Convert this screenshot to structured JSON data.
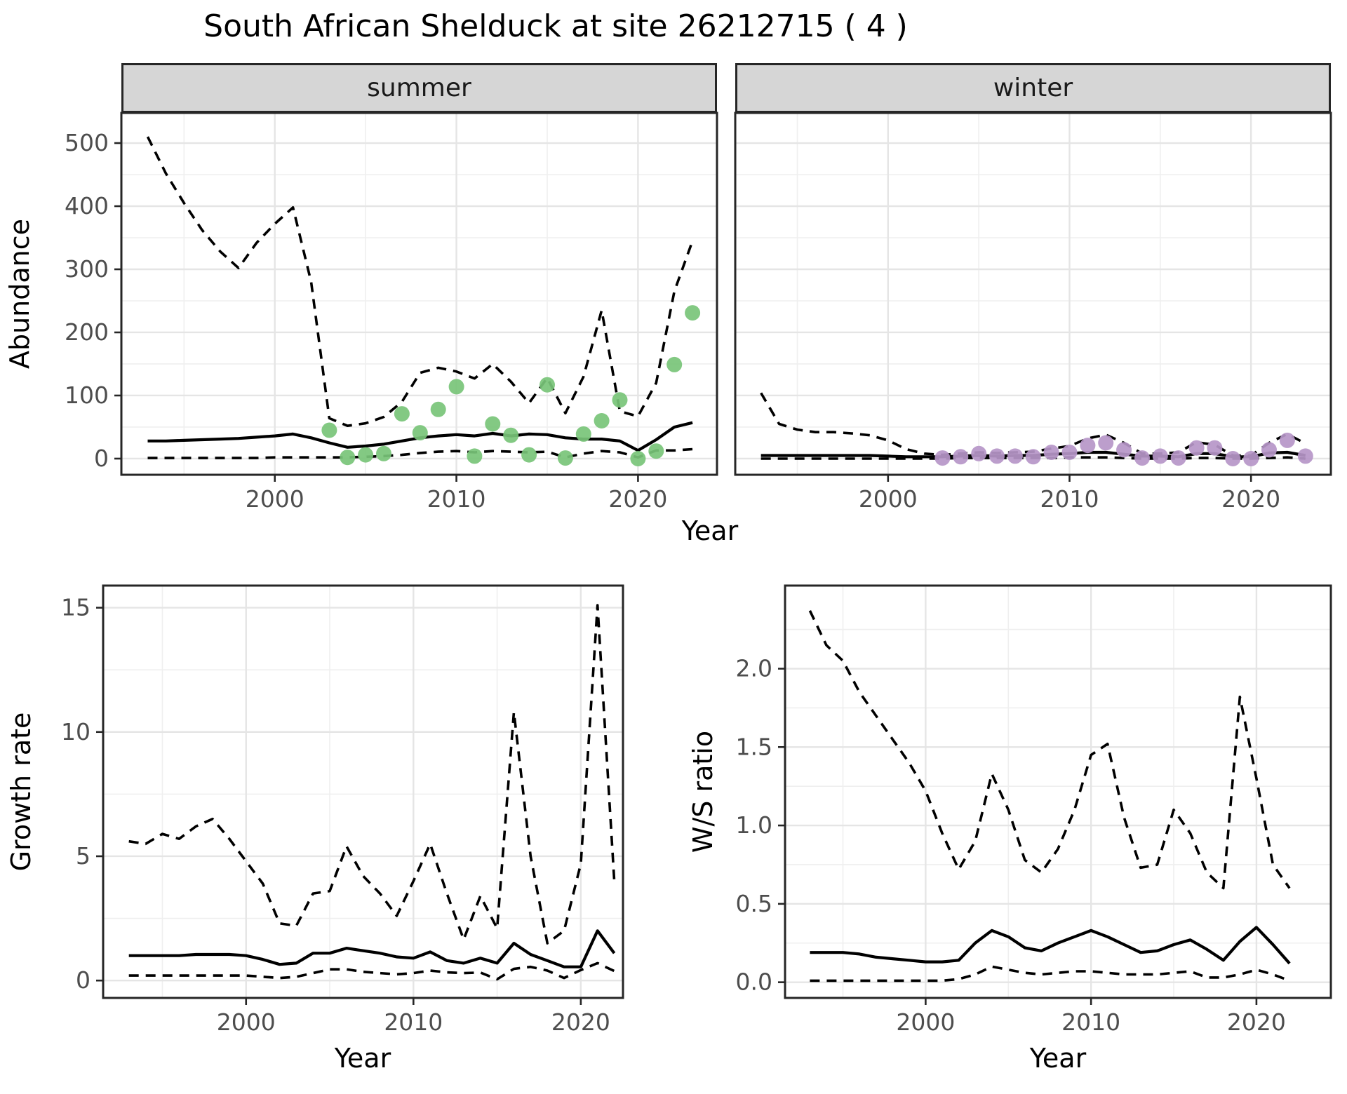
{
  "title": "South African Shelduck at site 26212715 ( 4 )",
  "axis_titles": {
    "top_x": "Year",
    "top_y": "Abundance",
    "bottom_left_x": "Year",
    "bottom_left_y": "Growth rate",
    "bottom_right_x": "Year",
    "bottom_right_y": "W/S ratio"
  },
  "facets": {
    "summer": "summer",
    "winter": "winter"
  },
  "colors": {
    "summer_dot": "#78c478",
    "winter_dot": "#b696c8",
    "line": "#000000",
    "panel_border": "#262626",
    "grid_major": "#e5e5e5",
    "grid_minor": "#efefef",
    "strip_bg": "#d6d6d6",
    "tick_text": "#4d4d4d"
  },
  "chart_data": [
    {
      "id": "summer_abundance",
      "type": "line",
      "facet": "summer",
      "xlabel": "Year",
      "ylabel": "Abundance",
      "xlim": [
        1991.55,
        2024.35
      ],
      "ylim": [
        -25.6,
        547.8
      ],
      "x_ticks": [
        2000,
        2010,
        2020
      ],
      "x_tick_labels": [
        "2000",
        "2010",
        "2020"
      ],
      "x_minor": [
        1995,
        2005,
        2015
      ],
      "y_ticks": [
        0,
        100,
        200,
        300,
        400,
        500
      ],
      "y_tick_labels": [
        "0",
        "100",
        "200",
        "300",
        "400",
        "500"
      ],
      "y_minor": [
        50,
        150,
        250,
        350,
        450
      ],
      "years": [
        1993,
        1994,
        1995,
        1996,
        1997,
        1998,
        1999,
        2000,
        2001,
        2002,
        2003,
        2004,
        2005,
        2006,
        2007,
        2008,
        2009,
        2010,
        2011,
        2012,
        2013,
        2014,
        2015,
        2016,
        2017,
        2018,
        2019,
        2020,
        2021,
        2022,
        2023
      ],
      "series": [
        {
          "name": "upper_ci",
          "style": "dashed",
          "values": [
            510,
            452,
            405,
            362,
            328,
            302,
            342,
            372,
            398,
            280,
            64,
            52,
            56,
            66,
            90,
            136,
            144,
            138,
            127,
            150,
            122,
            88,
            128,
            72,
            130,
            235,
            75,
            67,
            120,
            265,
            345
          ]
        },
        {
          "name": "median",
          "style": "solid",
          "values": [
            28,
            28,
            29,
            30,
            31,
            32,
            34,
            36,
            39,
            33,
            25,
            18,
            20,
            23,
            28,
            33,
            36,
            38,
            36,
            40,
            36,
            39,
            38,
            33,
            31,
            31,
            28,
            13,
            30,
            50,
            57
          ]
        },
        {
          "name": "lower_ci",
          "style": "dashed",
          "values": [
            1,
            1,
            1,
            1,
            1,
            1,
            1,
            2,
            2,
            2,
            2,
            2,
            3,
            4,
            6,
            9,
            11,
            12,
            10,
            12,
            11,
            10,
            11,
            2,
            8,
            12,
            10,
            2,
            13,
            13,
            15
          ]
        }
      ],
      "points": {
        "name": "observed_summer_counts",
        "color": "#78c478",
        "years": [
          2003,
          2004,
          2005,
          2006,
          2007,
          2008,
          2009,
          2010,
          2011,
          2012,
          2013,
          2014,
          2015,
          2016,
          2017,
          2018,
          2019,
          2020,
          2021,
          2022,
          2023
        ],
        "values": [
          45,
          2,
          6,
          8,
          71,
          41,
          78,
          114,
          4,
          55,
          37,
          6,
          117,
          1,
          39,
          60,
          93,
          0,
          12,
          149,
          231
        ]
      }
    },
    {
      "id": "winter_abundance",
      "type": "line",
      "facet": "winter",
      "xlabel": "Year",
      "ylabel": "Abundance",
      "xlim": [
        1991.58,
        2024.4
      ],
      "ylim": [
        -25.6,
        547.8
      ],
      "x_ticks": [
        2000,
        2010,
        2020
      ],
      "x_tick_labels": [
        "2000",
        "2010",
        "2020"
      ],
      "x_minor": [
        1995,
        2005,
        2015
      ],
      "y_ticks": [],
      "y_tick_labels": [],
      "y_minor": [
        50,
        150,
        250,
        350,
        450
      ],
      "y_grid_major": [
        0,
        100,
        200,
        300,
        400,
        500
      ],
      "years": [
        1993,
        1994,
        1995,
        1996,
        1997,
        1998,
        1999,
        2000,
        2001,
        2002,
        2003,
        2004,
        2005,
        2006,
        2007,
        2008,
        2009,
        2010,
        2011,
        2012,
        2013,
        2014,
        2015,
        2016,
        2017,
        2018,
        2019,
        2020,
        2021,
        2022,
        2023
      ],
      "series": [
        {
          "name": "upper_ci",
          "style": "dashed",
          "values": [
            104,
            55,
            46,
            42,
            42,
            40,
            37,
            29,
            15,
            8,
            6,
            8,
            10,
            9,
            10,
            11,
            16,
            20,
            32,
            38,
            25,
            8,
            8,
            10,
            26,
            22,
            5,
            5,
            25,
            39,
            24
          ]
        },
        {
          "name": "median",
          "style": "solid",
          "values": [
            5,
            5,
            5,
            5,
            5,
            5,
            5,
            4,
            3,
            3,
            3,
            4,
            5,
            4,
            5,
            5,
            7,
            8,
            10,
            10,
            7,
            4,
            4,
            3,
            8,
            8,
            3,
            3,
            9,
            10,
            5
          ]
        },
        {
          "name": "lower_ci",
          "style": "dashed",
          "values": [
            0,
            0,
            0,
            0,
            0,
            0,
            0,
            0,
            0,
            0,
            0,
            1,
            1,
            1,
            1,
            1,
            1,
            2,
            2,
            2,
            1,
            0,
            0,
            0,
            1,
            1,
            0,
            0,
            1,
            2,
            0
          ]
        }
      ],
      "points": {
        "name": "observed_winter_counts",
        "color": "#b696c8",
        "years": [
          2003,
          2004,
          2005,
          2006,
          2007,
          2008,
          2009,
          2010,
          2011,
          2012,
          2013,
          2014,
          2015,
          2016,
          2017,
          2018,
          2019,
          2020,
          2021,
          2022,
          2023
        ],
        "values": [
          1,
          3,
          8,
          4,
          4,
          3,
          10,
          10,
          21,
          25,
          14,
          1,
          4,
          1,
          17,
          17,
          0,
          0,
          14,
          29,
          4
        ]
      }
    },
    {
      "id": "growth_rate",
      "type": "line",
      "xlabel": "Year",
      "ylabel": "Growth rate",
      "xlim": [
        1991.46,
        2022.52
      ],
      "ylim": [
        -0.7,
        15.89
      ],
      "x_ticks": [
        2000,
        2010,
        2020
      ],
      "x_tick_labels": [
        "2000",
        "2010",
        "2020"
      ],
      "x_minor": [
        1995,
        2005,
        2015
      ],
      "y_ticks": [
        0,
        5,
        10,
        15
      ],
      "y_tick_labels": [
        "0",
        "5",
        "10",
        "15"
      ],
      "y_minor": [
        2.5,
        7.5,
        12.5
      ],
      "years": [
        1993,
        1994,
        1995,
        1996,
        1997,
        1998,
        1999,
        2000,
        2001,
        2002,
        2003,
        2004,
        2005,
        2006,
        2007,
        2008,
        2009,
        2010,
        2011,
        2012,
        2013,
        2014,
        2015,
        2016,
        2017,
        2018,
        2019,
        2020,
        2021,
        2022
      ],
      "series": [
        {
          "name": "upper_ci",
          "style": "dashed",
          "values": [
            5.6,
            5.5,
            5.9,
            5.7,
            6.2,
            6.5,
            5.7,
            4.8,
            3.9,
            2.3,
            2.2,
            3.5,
            3.6,
            5.4,
            4.2,
            3.5,
            2.6,
            4.0,
            5.5,
            3.5,
            1.65,
            3.4,
            2.1,
            10.8,
            5.0,
            1.5,
            2.0,
            4.7,
            15.1,
            4.0
          ]
        },
        {
          "name": "median",
          "style": "solid",
          "values": [
            1.0,
            1.0,
            1.0,
            1.0,
            1.05,
            1.05,
            1.05,
            1.0,
            0.85,
            0.65,
            0.7,
            1.1,
            1.1,
            1.3,
            1.2,
            1.1,
            0.95,
            0.9,
            1.15,
            0.8,
            0.7,
            0.9,
            0.7,
            1.5,
            1.05,
            0.8,
            0.55,
            0.55,
            2.0,
            1.1
          ]
        },
        {
          "name": "lower_ci",
          "style": "dashed",
          "values": [
            0.2,
            0.2,
            0.2,
            0.2,
            0.2,
            0.2,
            0.2,
            0.2,
            0.15,
            0.1,
            0.15,
            0.3,
            0.45,
            0.45,
            0.35,
            0.3,
            0.25,
            0.3,
            0.4,
            0.33,
            0.3,
            0.32,
            0.05,
            0.47,
            0.55,
            0.4,
            0.1,
            0.42,
            0.7,
            0.38
          ]
        }
      ]
    },
    {
      "id": "ws_ratio",
      "type": "line",
      "xlabel": "Year",
      "ylabel": "W/S ratio",
      "xlim": [
        1991.5,
        2024.5
      ],
      "ylim": [
        -0.1,
        2.53
      ],
      "x_ticks": [
        2000,
        2010,
        2020
      ],
      "x_tick_labels": [
        "2000",
        "2010",
        "2020"
      ],
      "x_minor": [
        1995,
        2005,
        2015
      ],
      "y_ticks": [
        0.0,
        0.5,
        1.0,
        1.5,
        2.0
      ],
      "y_tick_labels": [
        "0.0",
        "0.5",
        "1.0",
        "1.5",
        "2.0"
      ],
      "y_minor": [
        0.25,
        0.75,
        1.25,
        1.75,
        2.25
      ],
      "years": [
        1993,
        1994,
        1995,
        1996,
        1997,
        1998,
        1999,
        2000,
        2001,
        2002,
        2003,
        2004,
        2005,
        2006,
        2007,
        2008,
        2009,
        2010,
        2011,
        2012,
        2013,
        2014,
        2015,
        2016,
        2017,
        2018,
        2019,
        2020,
        2021,
        2022
      ],
      "series": [
        {
          "name": "upper_ci",
          "style": "dashed",
          "values": [
            2.37,
            2.15,
            2.05,
            1.85,
            1.7,
            1.55,
            1.4,
            1.22,
            0.95,
            0.72,
            0.9,
            1.33,
            1.1,
            0.78,
            0.7,
            0.85,
            1.1,
            1.45,
            1.52,
            1.05,
            0.73,
            0.75,
            1.1,
            0.95,
            0.7,
            0.6,
            1.82,
            1.3,
            0.75,
            0.6
          ]
        },
        {
          "name": "median",
          "style": "solid",
          "values": [
            0.19,
            0.19,
            0.19,
            0.18,
            0.16,
            0.15,
            0.14,
            0.13,
            0.13,
            0.14,
            0.25,
            0.33,
            0.29,
            0.22,
            0.2,
            0.25,
            0.29,
            0.33,
            0.29,
            0.24,
            0.19,
            0.2,
            0.24,
            0.27,
            0.21,
            0.14,
            0.26,
            0.35,
            0.24,
            0.12
          ]
        },
        {
          "name": "lower_ci",
          "style": "dashed",
          "values": [
            0.01,
            0.01,
            0.01,
            0.01,
            0.01,
            0.01,
            0.01,
            0.01,
            0.01,
            0.02,
            0.05,
            0.1,
            0.08,
            0.06,
            0.05,
            0.06,
            0.07,
            0.07,
            0.06,
            0.05,
            0.05,
            0.05,
            0.06,
            0.07,
            0.03,
            0.03,
            0.05,
            0.08,
            0.05,
            0.01
          ]
        }
      ]
    }
  ]
}
